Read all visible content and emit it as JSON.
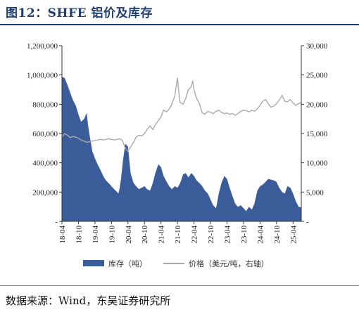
{
  "title": "图12：SHFE 铝价及库存",
  "source": "数据来源：Wind，东吴证券研究所",
  "chart_data": {
    "type": "area",
    "categories": [
      "18-04",
      "18-10",
      "19-04",
      "19-10",
      "20-04",
      "20-10",
      "21-04",
      "21-10",
      "22-04",
      "22-10",
      "23-04",
      "23-10",
      "24-04",
      "24-10",
      "25-04"
    ],
    "left_axis": {
      "ylim": [
        0,
        1200000
      ],
      "ticks": [
        "-",
        "200,000",
        "400,000",
        "600,000",
        "800,000",
        "1,000,000",
        "1,200,000"
      ]
    },
    "right_axis": {
      "ylim": [
        0,
        30000
      ],
      "ticks": [
        "-",
        "5,000",
        "10,000",
        "15,000",
        "20,000",
        "25,000",
        "30,000"
      ]
    },
    "grid": false,
    "legend_position": "bottom",
    "series": [
      {
        "name": "库存（吨）",
        "type": "area",
        "axis": "left",
        "color": "#3a5c99",
        "points": [
          [
            2018.25,
            985000
          ],
          [
            2018.33,
            980000
          ],
          [
            2018.42,
            930000
          ],
          [
            2018.5,
            880000
          ],
          [
            2018.58,
            830000
          ],
          [
            2018.67,
            790000
          ],
          [
            2018.75,
            730000
          ],
          [
            2018.83,
            680000
          ],
          [
            2018.92,
            700000
          ],
          [
            2019.0,
            740000
          ],
          [
            2019.04,
            660000
          ],
          [
            2019.08,
            600000
          ],
          [
            2019.17,
            480000
          ],
          [
            2019.25,
            430000
          ],
          [
            2019.33,
            390000
          ],
          [
            2019.42,
            350000
          ],
          [
            2019.5,
            310000
          ],
          [
            2019.58,
            280000
          ],
          [
            2019.67,
            260000
          ],
          [
            2019.75,
            240000
          ],
          [
            2019.83,
            220000
          ],
          [
            2019.92,
            200000
          ],
          [
            2019.96,
            190000
          ],
          [
            2020.0,
            230000
          ],
          [
            2020.04,
            290000
          ],
          [
            2020.1,
            420000
          ],
          [
            2020.17,
            530000
          ],
          [
            2020.25,
            510000
          ],
          [
            2020.29,
            420000
          ],
          [
            2020.33,
            330000
          ],
          [
            2020.42,
            260000
          ],
          [
            2020.5,
            240000
          ],
          [
            2020.58,
            220000
          ],
          [
            2020.67,
            230000
          ],
          [
            2020.75,
            240000
          ],
          [
            2020.83,
            220000
          ],
          [
            2020.92,
            210000
          ],
          [
            2021.0,
            260000
          ],
          [
            2021.08,
            330000
          ],
          [
            2021.17,
            390000
          ],
          [
            2021.25,
            370000
          ],
          [
            2021.33,
            310000
          ],
          [
            2021.42,
            270000
          ],
          [
            2021.5,
            240000
          ],
          [
            2021.58,
            220000
          ],
          [
            2021.67,
            240000
          ],
          [
            2021.75,
            230000
          ],
          [
            2021.83,
            260000
          ],
          [
            2021.92,
            320000
          ],
          [
            2022.0,
            330000
          ],
          [
            2022.08,
            300000
          ],
          [
            2022.17,
            330000
          ],
          [
            2022.25,
            310000
          ],
          [
            2022.33,
            280000
          ],
          [
            2022.42,
            260000
          ],
          [
            2022.5,
            240000
          ],
          [
            2022.58,
            210000
          ],
          [
            2022.67,
            190000
          ],
          [
            2022.75,
            150000
          ],
          [
            2022.83,
            110000
          ],
          [
            2022.92,
            90000
          ],
          [
            2023.0,
            190000
          ],
          [
            2023.08,
            260000
          ],
          [
            2023.17,
            310000
          ],
          [
            2023.25,
            290000
          ],
          [
            2023.33,
            230000
          ],
          [
            2023.42,
            170000
          ],
          [
            2023.5,
            120000
          ],
          [
            2023.58,
            100000
          ],
          [
            2023.67,
            110000
          ],
          [
            2023.75,
            90000
          ],
          [
            2023.83,
            70000
          ],
          [
            2023.92,
            100000
          ],
          [
            2024.0,
            80000
          ],
          [
            2024.08,
            120000
          ],
          [
            2024.17,
            210000
          ],
          [
            2024.25,
            240000
          ],
          [
            2024.33,
            250000
          ],
          [
            2024.42,
            270000
          ],
          [
            2024.5,
            290000
          ],
          [
            2024.58,
            285000
          ],
          [
            2024.67,
            280000
          ],
          [
            2024.75,
            270000
          ],
          [
            2024.83,
            230000
          ],
          [
            2024.92,
            200000
          ],
          [
            2025.0,
            190000
          ],
          [
            2025.08,
            240000
          ],
          [
            2025.17,
            230000
          ],
          [
            2025.25,
            190000
          ],
          [
            2025.33,
            140000
          ],
          [
            2025.42,
            100000
          ],
          [
            2025.5,
            95000
          ]
        ]
      },
      {
        "name": "价格（美元/吨，右轴）",
        "type": "line",
        "axis": "right",
        "color": "#aaaaaa",
        "points": [
          [
            2018.25,
            14400
          ],
          [
            2018.3,
            14800
          ],
          [
            2018.33,
            15000
          ],
          [
            2018.42,
            14700
          ],
          [
            2018.5,
            14300
          ],
          [
            2018.58,
            14500
          ],
          [
            2018.67,
            14400
          ],
          [
            2018.75,
            14200
          ],
          [
            2018.83,
            13900
          ],
          [
            2018.92,
            13700
          ],
          [
            2019.0,
            13500
          ],
          [
            2019.08,
            13600
          ],
          [
            2019.17,
            13700
          ],
          [
            2019.25,
            13800
          ],
          [
            2019.33,
            13900
          ],
          [
            2019.42,
            14000
          ],
          [
            2019.5,
            13900
          ],
          [
            2019.58,
            14000
          ],
          [
            2019.67,
            14100
          ],
          [
            2019.75,
            14000
          ],
          [
            2019.83,
            13900
          ],
          [
            2019.92,
            14000
          ],
          [
            2020.0,
            14100
          ],
          [
            2020.08,
            13800
          ],
          [
            2020.17,
            12500
          ],
          [
            2020.25,
            12000
          ],
          [
            2020.33,
            12700
          ],
          [
            2020.42,
            13500
          ],
          [
            2020.5,
            14400
          ],
          [
            2020.58,
            14700
          ],
          [
            2020.67,
            14600
          ],
          [
            2020.75,
            15000
          ],
          [
            2020.83,
            15700
          ],
          [
            2020.92,
            16300
          ],
          [
            2021.0,
            15700
          ],
          [
            2021.08,
            16500
          ],
          [
            2021.17,
            17200
          ],
          [
            2021.25,
            17800
          ],
          [
            2021.33,
            19000
          ],
          [
            2021.42,
            18700
          ],
          [
            2021.5,
            19200
          ],
          [
            2021.58,
            20000
          ],
          [
            2021.67,
            21500
          ],
          [
            2021.75,
            24500
          ],
          [
            2021.79,
            22000
          ],
          [
            2021.83,
            20300
          ],
          [
            2021.92,
            20000
          ],
          [
            2022.0,
            21000
          ],
          [
            2022.08,
            22500
          ],
          [
            2022.17,
            23000
          ],
          [
            2022.21,
            24000
          ],
          [
            2022.25,
            22500
          ],
          [
            2022.33,
            21000
          ],
          [
            2022.42,
            20000
          ],
          [
            2022.5,
            18500
          ],
          [
            2022.58,
            18300
          ],
          [
            2022.67,
            18800
          ],
          [
            2022.75,
            18600
          ],
          [
            2022.83,
            18400
          ],
          [
            2022.92,
            18800
          ],
          [
            2023.0,
            19000
          ],
          [
            2023.08,
            18600
          ],
          [
            2023.17,
            18400
          ],
          [
            2023.25,
            18500
          ],
          [
            2023.33,
            18300
          ],
          [
            2023.42,
            18400
          ],
          [
            2023.5,
            18100
          ],
          [
            2023.58,
            18400
          ],
          [
            2023.67,
            18800
          ],
          [
            2023.75,
            19000
          ],
          [
            2023.83,
            18900
          ],
          [
            2023.92,
            18700
          ],
          [
            2024.0,
            19000
          ],
          [
            2024.08,
            18800
          ],
          [
            2024.17,
            19200
          ],
          [
            2024.25,
            19800
          ],
          [
            2024.33,
            20500
          ],
          [
            2024.42,
            20800
          ],
          [
            2024.5,
            20100
          ],
          [
            2024.58,
            19500
          ],
          [
            2024.67,
            19700
          ],
          [
            2024.75,
            20100
          ],
          [
            2024.83,
            20700
          ],
          [
            2024.92,
            21500
          ],
          [
            2025.0,
            20500
          ],
          [
            2025.08,
            20400
          ],
          [
            2025.17,
            20800
          ],
          [
            2025.25,
            20200
          ],
          [
            2025.33,
            19800
          ],
          [
            2025.42,
            20100
          ],
          [
            2025.5,
            20300
          ]
        ]
      }
    ]
  }
}
